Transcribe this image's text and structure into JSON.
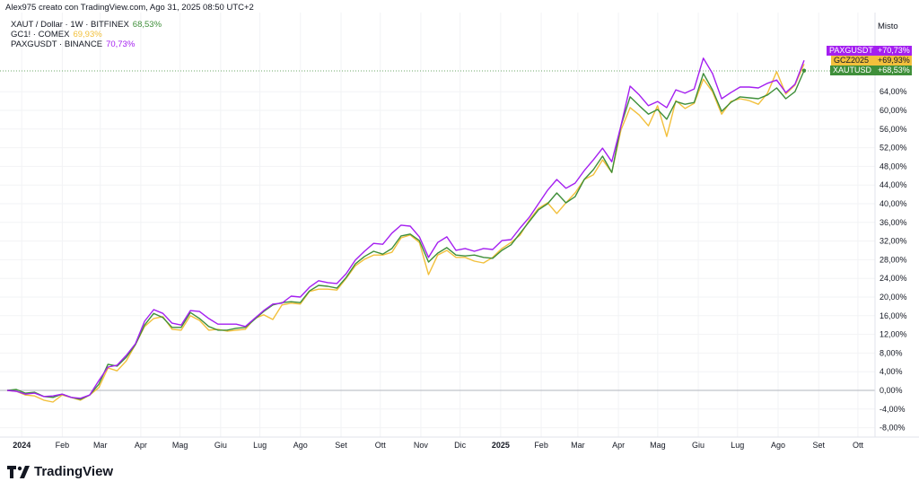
{
  "header": {
    "caption": "Alex975 creato con TradingView.com, Ago 31, 2025 08:50 UTC+2"
  },
  "legend": [
    {
      "label": "XAUT / Dollar · 1W · BITFINEX",
      "value": "68,53%",
      "color": "#3f8f3a"
    },
    {
      "label": "GC1! · COMEX",
      "value": "69,93%",
      "color": "#f2c03c"
    },
    {
      "label": "PAXGUSDT · BINANCE",
      "value": "70,73%",
      "color": "#a41ff0"
    }
  ],
  "price_axis": {
    "title": "Misto",
    "ticks": [
      "-8,00%",
      "-4,00%",
      "0,00%",
      "4,00%",
      "8,00%",
      "12,00%",
      "16,00%",
      "20,00%",
      "24,00%",
      "28,00%",
      "32,00%",
      "36,00%",
      "40,00%",
      "44,00%",
      "48,00%",
      "52,00%",
      "56,00%",
      "60,00%",
      "64,00%"
    ],
    "tick_values": [
      -8,
      -4,
      0,
      4,
      8,
      12,
      16,
      20,
      24,
      28,
      32,
      36,
      40,
      44,
      48,
      52,
      56,
      60,
      64
    ]
  },
  "price_tags": [
    {
      "symbol": "PAXGUSDT",
      "value": "+70,73%",
      "color": "#a41ff0"
    },
    {
      "symbol": "GCZ2025",
      "value": "+69,93%",
      "color": "#f2c03c"
    },
    {
      "symbol": "XAUTUSD",
      "value": "+68,53%",
      "color": "#3f8f3a"
    }
  ],
  "footer": {
    "brand": "TradingView"
  },
  "chart_data": {
    "type": "line",
    "title": "",
    "xlabel": "",
    "ylabel": "",
    "ylim": [
      -10,
      76
    ],
    "y_unit": "%",
    "grid": true,
    "legend_placement": "top-left",
    "x_ticks": [
      {
        "label": "2024",
        "date": "2024-01-01"
      },
      {
        "label": "Feb",
        "date": "2024-02-01"
      },
      {
        "label": "Mar",
        "date": "2024-03-01"
      },
      {
        "label": "Apr",
        "date": "2024-04-01"
      },
      {
        "label": "Mag",
        "date": "2024-05-01"
      },
      {
        "label": "Giu",
        "date": "2024-06-01"
      },
      {
        "label": "Lug",
        "date": "2024-07-01"
      },
      {
        "label": "Ago",
        "date": "2024-08-01"
      },
      {
        "label": "Set",
        "date": "2024-09-01"
      },
      {
        "label": "Ott",
        "date": "2024-10-01"
      },
      {
        "label": "Nov",
        "date": "2024-11-01"
      },
      {
        "label": "Dic",
        "date": "2024-12-01"
      },
      {
        "label": "2025",
        "date": "2025-01-01"
      },
      {
        "label": "Feb",
        "date": "2025-02-01"
      },
      {
        "label": "Mar",
        "date": "2025-03-01"
      },
      {
        "label": "Apr",
        "date": "2025-04-01"
      },
      {
        "label": "Mag",
        "date": "2025-05-01"
      },
      {
        "label": "Giu",
        "date": "2025-06-01"
      },
      {
        "label": "Lug",
        "date": "2025-07-01"
      },
      {
        "label": "Ago",
        "date": "2025-08-01"
      },
      {
        "label": "Set",
        "date": "2025-09-01"
      },
      {
        "label": "Ott",
        "date": "2025-10-01"
      }
    ],
    "x": [
      "2023-12-25",
      "2024-01-01",
      "2024-01-08",
      "2024-01-15",
      "2024-01-22",
      "2024-01-29",
      "2024-02-05",
      "2024-02-12",
      "2024-02-19",
      "2024-02-26",
      "2024-03-04",
      "2024-03-11",
      "2024-03-18",
      "2024-03-25",
      "2024-04-01",
      "2024-04-08",
      "2024-04-15",
      "2024-04-22",
      "2024-04-29",
      "2024-05-06",
      "2024-05-13",
      "2024-05-20",
      "2024-05-27",
      "2024-06-03",
      "2024-06-10",
      "2024-06-17",
      "2024-06-24",
      "2024-07-01",
      "2024-07-08",
      "2024-07-15",
      "2024-07-22",
      "2024-07-29",
      "2024-08-05",
      "2024-08-12",
      "2024-08-19",
      "2024-08-26",
      "2024-09-02",
      "2024-09-09",
      "2024-09-16",
      "2024-09-23",
      "2024-09-30",
      "2024-10-07",
      "2024-10-14",
      "2024-10-21",
      "2024-10-28",
      "2024-11-04",
      "2024-11-11",
      "2024-11-18",
      "2024-11-25",
      "2024-12-02",
      "2024-12-09",
      "2024-12-16",
      "2024-12-23",
      "2024-12-30",
      "2025-01-06",
      "2025-01-13",
      "2025-01-20",
      "2025-01-27",
      "2025-02-03",
      "2025-02-10",
      "2025-02-17",
      "2025-02-24",
      "2025-03-03",
      "2025-03-10",
      "2025-03-17",
      "2025-03-24",
      "2025-03-31",
      "2025-04-07",
      "2025-04-14",
      "2025-04-21",
      "2025-04-28",
      "2025-05-05",
      "2025-05-12",
      "2025-05-19",
      "2025-05-26",
      "2025-06-02",
      "2025-06-09",
      "2025-06-16",
      "2025-06-23",
      "2025-06-30",
      "2025-07-07",
      "2025-07-14",
      "2025-07-21",
      "2025-07-28",
      "2025-08-04",
      "2025-08-11",
      "2025-08-18",
      "2025-08-25"
    ],
    "series": [
      {
        "name": "GC1! · COMEX",
        "color": "#f2c03c",
        "values": [
          0,
          -0.2,
          -1.0,
          -1.2,
          -2.1,
          -2.5,
          -1.0,
          -1.5,
          -2.1,
          -1.0,
          0.6,
          4.8,
          4.2,
          6.3,
          9.8,
          13.7,
          15.4,
          15.8,
          13.1,
          12.9,
          16.0,
          15.0,
          12.9,
          13.1,
          12.7,
          12.9,
          13.1,
          15.4,
          16.2,
          15.2,
          18.3,
          18.7,
          18.5,
          21.2,
          21.7,
          21.7,
          21.5,
          24.0,
          26.7,
          28.1,
          29.0,
          29.0,
          29.6,
          32.7,
          33.3,
          31.7,
          24.8,
          29.0,
          30.0,
          28.5,
          28.5,
          27.7,
          27.3,
          28.5,
          30.4,
          31.7,
          33.3,
          36.5,
          39.0,
          40.2,
          37.9,
          40.2,
          42.3,
          45.2,
          46.2,
          49.4,
          46.7,
          55.8,
          60.6,
          59.0,
          56.7,
          61.0,
          54.4,
          62.1,
          60.4,
          61.5,
          66.7,
          64.0,
          59.2,
          61.9,
          62.5,
          62.1,
          61.3,
          63.7,
          68.3,
          63.5,
          65.4,
          69.93
        ]
      },
      {
        "name": "XAUT / Dollar · 1W · BITFINEX",
        "color": "#3f8f3a",
        "values": [
          0,
          0.2,
          -0.6,
          -0.4,
          -1.3,
          -1.5,
          -0.8,
          -1.5,
          -1.9,
          -1.0,
          1.3,
          5.6,
          5.2,
          7.1,
          9.8,
          14.0,
          16.5,
          15.6,
          13.5,
          13.5,
          16.7,
          15.4,
          13.7,
          12.9,
          12.9,
          13.3,
          13.5,
          15.2,
          16.9,
          18.3,
          18.8,
          19.0,
          18.8,
          21.3,
          22.5,
          22.3,
          21.9,
          24.2,
          27.1,
          28.7,
          29.8,
          29.2,
          30.4,
          33.1,
          33.5,
          32.1,
          27.5,
          29.4,
          30.6,
          29.0,
          28.8,
          29.0,
          28.5,
          28.3,
          30.0,
          31.2,
          33.7,
          36.2,
          38.7,
          40.0,
          42.3,
          40.2,
          41.5,
          45.2,
          47.3,
          50.2,
          46.7,
          56.7,
          62.9,
          61.0,
          59.2,
          60.2,
          58.1,
          61.9,
          61.3,
          61.7,
          67.9,
          64.4,
          59.8,
          61.7,
          62.9,
          62.7,
          62.5,
          63.3,
          64.8,
          62.5,
          64.0,
          68.53
        ]
      },
      {
        "name": "PAXGUSDT · BINANCE",
        "color": "#a41ff0",
        "values": [
          0,
          -0.2,
          -0.8,
          -0.6,
          -1.3,
          -1.2,
          -0.8,
          -1.5,
          -1.7,
          -1.0,
          2.1,
          5.0,
          5.4,
          7.5,
          10.0,
          14.8,
          17.3,
          16.5,
          14.4,
          14.0,
          17.1,
          16.9,
          15.4,
          14.2,
          14.2,
          14.2,
          13.7,
          15.4,
          17.1,
          18.5,
          18.7,
          20.2,
          20.0,
          22.1,
          23.5,
          23.1,
          22.9,
          25.0,
          27.9,
          29.8,
          31.5,
          31.3,
          33.7,
          35.4,
          35.2,
          32.9,
          28.5,
          31.7,
          32.9,
          30.0,
          30.4,
          29.8,
          30.4,
          30.2,
          32.1,
          32.3,
          34.8,
          37.1,
          40.0,
          42.9,
          45.2,
          43.3,
          44.4,
          47.1,
          49.4,
          51.9,
          49.0,
          56.7,
          65.2,
          63.3,
          61.0,
          61.9,
          60.6,
          64.4,
          63.7,
          64.6,
          71.2,
          67.9,
          62.5,
          63.8,
          65.0,
          65.0,
          64.8,
          65.8,
          66.5,
          63.8,
          65.6,
          70.73
        ]
      }
    ]
  }
}
